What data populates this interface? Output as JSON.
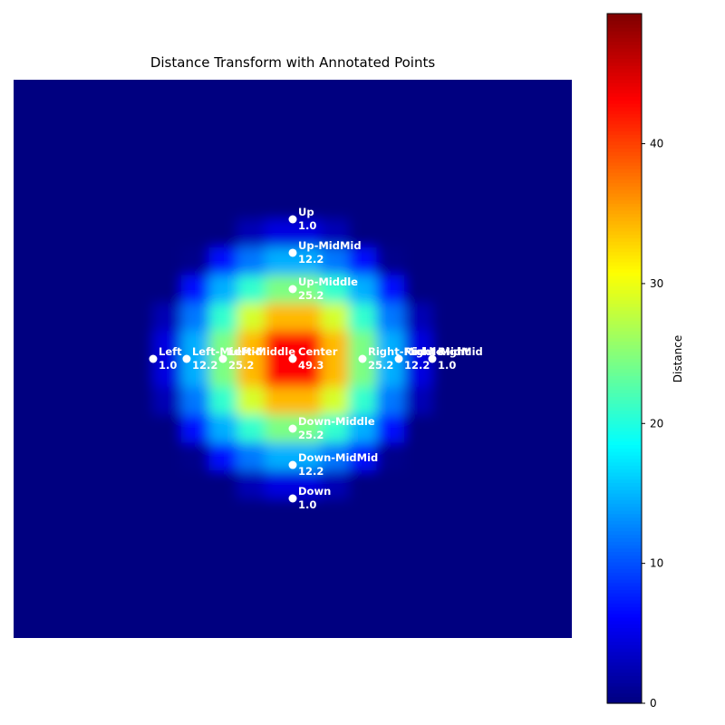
{
  "chart_data": {
    "type": "heatmap",
    "title": "Distance Transform with Annotated Points",
    "colorbar_label": "Distance",
    "colormap": "jet",
    "clim": [
      0,
      49.3
    ],
    "cticks": [
      0,
      10,
      20,
      30,
      40
    ],
    "xlim": [
      0,
      200
    ],
    "ylim": [
      200,
      0
    ],
    "heatmap": [
      [
        0,
        0,
        0,
        0,
        0,
        0,
        0,
        0,
        0,
        0,
        0,
        0,
        0,
        0,
        0,
        0,
        0,
        0,
        0,
        0
      ],
      [
        0,
        0,
        0,
        0,
        0,
        0,
        0,
        0,
        0,
        0,
        0,
        0,
        0,
        0,
        0,
        0,
        0,
        0,
        0,
        0
      ],
      [
        0,
        0,
        0,
        0,
        0,
        0,
        0,
        0,
        0,
        0,
        0,
        0,
        0,
        0,
        0,
        0,
        0,
        0,
        0,
        0
      ],
      [
        0,
        0,
        0,
        0,
        0,
        0,
        0,
        0,
        0,
        0,
        0,
        0,
        0,
        0,
        0,
        0,
        0,
        0,
        0,
        0
      ],
      [
        0,
        0,
        0,
        0,
        0,
        0,
        0,
        0,
        0,
        0,
        0,
        0,
        0,
        0,
        0,
        0,
        0,
        0,
        0,
        0
      ],
      [
        0,
        0,
        0,
        0,
        0,
        0,
        0,
        0,
        2.6,
        4.7,
        4.7,
        2.6,
        0,
        0,
        0,
        0,
        0,
        0,
        0,
        0
      ],
      [
        0,
        0,
        0,
        0,
        0,
        0,
        0.5,
        7,
        11.9,
        14.6,
        14.6,
        11.9,
        7,
        0.5,
        0,
        0,
        0,
        0,
        0,
        0
      ],
      [
        0,
        0,
        0,
        0,
        0,
        0,
        7,
        14.6,
        20.8,
        24.5,
        24.5,
        20.8,
        14.6,
        7,
        0,
        0,
        0,
        0,
        0,
        0
      ],
      [
        0,
        0,
        0,
        0,
        0,
        2.6,
        11.9,
        20.8,
        28.8,
        34.2,
        34.2,
        28.8,
        20.8,
        11.9,
        2.6,
        0,
        0,
        0,
        0,
        0
      ],
      [
        0,
        0,
        0,
        0,
        0,
        4.7,
        14.6,
        24.5,
        34.2,
        42.9,
        42.9,
        34.2,
        24.5,
        14.6,
        4.7,
        0,
        0,
        0,
        0,
        0
      ],
      [
        0,
        0,
        0,
        0,
        0,
        4.7,
        14.6,
        24.5,
        34.2,
        42.9,
        42.9,
        34.2,
        24.5,
        14.6,
        4.7,
        0,
        0,
        0,
        0,
        0
      ],
      [
        0,
        0,
        0,
        0,
        0,
        2.6,
        11.9,
        20.8,
        28.8,
        34.2,
        34.2,
        28.8,
        20.8,
        11.9,
        2.6,
        0,
        0,
        0,
        0,
        0
      ],
      [
        0,
        0,
        0,
        0,
        0,
        0,
        7,
        14.6,
        20.8,
        24.5,
        24.5,
        20.8,
        14.6,
        7,
        0,
        0,
        0,
        0,
        0,
        0
      ],
      [
        0,
        0,
        0,
        0,
        0,
        0,
        0.5,
        7,
        11.9,
        14.6,
        14.6,
        11.9,
        7,
        0.5,
        0,
        0,
        0,
        0,
        0,
        0
      ],
      [
        0,
        0,
        0,
        0,
        0,
        0,
        0,
        0,
        2.6,
        4.7,
        4.7,
        2.6,
        0,
        0,
        0,
        0,
        0,
        0,
        0,
        0
      ],
      [
        0,
        0,
        0,
        0,
        0,
        0,
        0,
        0,
        0,
        0,
        0,
        0,
        0,
        0,
        0,
        0,
        0,
        0,
        0,
        0
      ],
      [
        0,
        0,
        0,
        0,
        0,
        0,
        0,
        0,
        0,
        0,
        0,
        0,
        0,
        0,
        0,
        0,
        0,
        0,
        0,
        0
      ],
      [
        0,
        0,
        0,
        0,
        0,
        0,
        0,
        0,
        0,
        0,
        0,
        0,
        0,
        0,
        0,
        0,
        0,
        0,
        0,
        0
      ],
      [
        0,
        0,
        0,
        0,
        0,
        0,
        0,
        0,
        0,
        0,
        0,
        0,
        0,
        0,
        0,
        0,
        0,
        0,
        0,
        0
      ],
      [
        0,
        0,
        0,
        0,
        0,
        0,
        0,
        0,
        0,
        0,
        0,
        0,
        0,
        0,
        0,
        0,
        0,
        0,
        0,
        0
      ]
    ],
    "point_color": "#ffffff",
    "points": [
      {
        "name": "Center",
        "x": 100,
        "y": 100,
        "value": 49.3,
        "value_label": "49.3"
      },
      {
        "name": "Up",
        "x": 100,
        "y": 50,
        "value": 1.0,
        "value_label": "1.0"
      },
      {
        "name": "Down",
        "x": 100,
        "y": 150,
        "value": 1.0,
        "value_label": "1.0"
      },
      {
        "name": "Left",
        "x": 50,
        "y": 100,
        "value": 1.0,
        "value_label": "1.0"
      },
      {
        "name": "Right",
        "x": 150,
        "y": 100,
        "value": 1.0,
        "value_label": "1.0"
      },
      {
        "name": "Up-Middle",
        "x": 100,
        "y": 75,
        "value": 25.2,
        "value_label": "25.2"
      },
      {
        "name": "Down-Middle",
        "x": 100,
        "y": 125,
        "value": 25.2,
        "value_label": "25.2"
      },
      {
        "name": "Left-Middle",
        "x": 75,
        "y": 100,
        "value": 25.2,
        "value_label": "25.2"
      },
      {
        "name": "Right-Middle",
        "x": 125,
        "y": 100,
        "value": 25.2,
        "value_label": "25.2"
      },
      {
        "name": "Up-MidMid",
        "x": 100,
        "y": 62,
        "value": 12.2,
        "value_label": "12.2"
      },
      {
        "name": "Down-MidMid",
        "x": 100,
        "y": 138,
        "value": 12.2,
        "value_label": "12.2"
      },
      {
        "name": "Left-MidMid",
        "x": 62,
        "y": 100,
        "value": 12.2,
        "value_label": "12.2"
      },
      {
        "name": "Right-MidMid",
        "x": 138,
        "y": 100,
        "value": 12.2,
        "value_label": "12.2"
      }
    ]
  }
}
